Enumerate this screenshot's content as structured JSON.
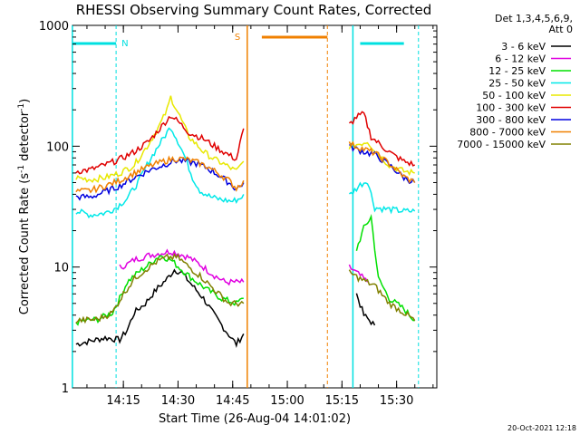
{
  "chart_data": {
    "type": "line",
    "title": "RHESSI Observing Summary Count Rates, Corrected",
    "xlabel": "Start Time (26-Aug-04 14:01:02)",
    "ylabel": "Corrected Count Rate (s-1 detector-1)",
    "ylabel_parts": {
      "main": "Corrected Count Rate (s",
      "sup1": "-1",
      "mid": " detector",
      "sup2": "-1",
      "end": ")"
    },
    "x_axis_start": "14:01:02",
    "xlim": [
      "14:01:02",
      "15:41:02"
    ],
    "ylim": [
      1,
      1000
    ],
    "yscale": "log",
    "grid": false,
    "x_ticks": [
      "14:15",
      "14:30",
      "14:45",
      "15:00",
      "15:15",
      "15:30"
    ],
    "y_ticks": [
      "1",
      "10",
      "100",
      "1000"
    ],
    "legend": {
      "placement": "right",
      "header": [
        "Det 1,3,4,5,6,9,",
        "Att 0"
      ]
    },
    "series": [
      {
        "name": "3 - 6 keV",
        "color": "#000000",
        "points": [
          [
            "14:02",
            2.3
          ],
          [
            "14:10",
            2.6
          ],
          [
            "14:14",
            2.5
          ],
          [
            "14:16",
            3
          ],
          [
            "14:18",
            4.2
          ],
          [
            "14:21",
            5
          ],
          [
            "14:24",
            6.5
          ],
          [
            "14:27",
            8
          ],
          [
            "14:29",
            9.5
          ],
          [
            "14:31",
            9
          ],
          [
            "14:34",
            7
          ],
          [
            "14:37",
            5.5
          ],
          [
            "14:40",
            4
          ],
          [
            "14:43",
            3
          ],
          [
            "14:46",
            2.3
          ],
          [
            "14:48",
            2.8
          ],
          [
            "15:19",
            6
          ],
          [
            "15:21",
            4
          ],
          [
            "15:24",
            3.3
          ]
        ]
      },
      {
        "name": "6 - 12 keV",
        "color": "#e000e0",
        "points": [
          [
            "14:14",
            10
          ],
          [
            "14:16",
            10.5
          ],
          [
            "14:18",
            11.5
          ],
          [
            "14:20",
            12
          ],
          [
            "14:22",
            12.5
          ],
          [
            "14:25",
            13
          ],
          [
            "14:28",
            13.5
          ],
          [
            "14:30",
            13
          ],
          [
            "14:33",
            12
          ],
          [
            "14:36",
            10.5
          ],
          [
            "14:40",
            8.5
          ],
          [
            "14:43",
            7.5
          ],
          [
            "14:48",
            7.5
          ],
          [
            "15:17",
            10
          ],
          [
            "15:20",
            8.5
          ],
          [
            "15:22",
            7.5
          ]
        ]
      },
      {
        "name": "12 - 25 keV",
        "color": "#00e000",
        "points": [
          [
            "14:02",
            3.5
          ],
          [
            "14:08",
            3.7
          ],
          [
            "14:12",
            4.2
          ],
          [
            "14:14",
            5.5
          ],
          [
            "14:16",
            7.5
          ],
          [
            "14:19",
            9
          ],
          [
            "14:22",
            10.5
          ],
          [
            "14:25",
            12.5
          ],
          [
            "14:28",
            11.5
          ],
          [
            "14:31",
            9.5
          ],
          [
            "14:34",
            8
          ],
          [
            "14:38",
            6.5
          ],
          [
            "14:42",
            5.5
          ],
          [
            "14:46",
            5
          ],
          [
            "14:48",
            5.5
          ],
          [
            "15:19",
            14
          ],
          [
            "15:21",
            21
          ],
          [
            "15:23",
            26
          ],
          [
            "15:25",
            8
          ],
          [
            "15:28",
            5.5
          ],
          [
            "15:32",
            4.5
          ],
          [
            "15:35",
            3.6
          ]
        ]
      },
      {
        "name": "25 - 50 keV",
        "color": "#00e8e8",
        "points": [
          [
            "14:02",
            29
          ],
          [
            "14:06",
            27
          ],
          [
            "14:10",
            28
          ],
          [
            "14:13",
            31
          ],
          [
            "14:16",
            37
          ],
          [
            "14:19",
            50
          ],
          [
            "14:22",
            75
          ],
          [
            "14:25",
            105
          ],
          [
            "14:28",
            145
          ],
          [
            "14:30",
            110
          ],
          [
            "14:32",
            80
          ],
          [
            "14:34",
            55
          ],
          [
            "14:36",
            43
          ],
          [
            "14:39",
            38
          ],
          [
            "14:42",
            36
          ],
          [
            "14:45",
            35
          ],
          [
            "14:47",
            37
          ],
          [
            "14:48",
            40
          ],
          [
            "15:17",
            39
          ],
          [
            "15:20",
            48
          ],
          [
            "15:22",
            52
          ],
          [
            "15:24",
            31
          ],
          [
            "15:28",
            30
          ],
          [
            "15:32",
            29
          ],
          [
            "15:35",
            29
          ]
        ]
      },
      {
        "name": "50 - 100 keV",
        "color": "#e8e800",
        "points": [
          [
            "14:02",
            55
          ],
          [
            "14:06",
            53
          ],
          [
            "14:10",
            55
          ],
          [
            "14:14",
            60
          ],
          [
            "14:18",
            70
          ],
          [
            "14:22",
            105
          ],
          [
            "14:25",
            150
          ],
          [
            "14:27",
            200
          ],
          [
            "14:28",
            255
          ],
          [
            "14:30",
            190
          ],
          [
            "14:33",
            120
          ],
          [
            "14:37",
            90
          ],
          [
            "14:40",
            78
          ],
          [
            "14:43",
            70
          ],
          [
            "14:46",
            62
          ],
          [
            "14:48",
            75
          ],
          [
            "15:17",
            100
          ],
          [
            "15:20",
            105
          ],
          [
            "15:22",
            110
          ],
          [
            "15:25",
            85
          ],
          [
            "15:28",
            70
          ],
          [
            "15:32",
            62
          ],
          [
            "15:35",
            60
          ]
        ]
      },
      {
        "name": "100 - 300 keV",
        "color": "#e00000",
        "points": [
          [
            "14:02",
            62
          ],
          [
            "14:06",
            64
          ],
          [
            "14:10",
            70
          ],
          [
            "14:14",
            78
          ],
          [
            "14:18",
            90
          ],
          [
            "14:22",
            110
          ],
          [
            "14:25",
            140
          ],
          [
            "14:28",
            180
          ],
          [
            "14:30",
            160
          ],
          [
            "14:33",
            130
          ],
          [
            "14:37",
            115
          ],
          [
            "14:40",
            100
          ],
          [
            "14:43",
            88
          ],
          [
            "14:46",
            78
          ],
          [
            "14:48",
            140
          ],
          [
            "15:17",
            150
          ],
          [
            "15:19",
            175
          ],
          [
            "15:21",
            185
          ],
          [
            "15:23",
            120
          ],
          [
            "15:26",
            100
          ],
          [
            "15:29",
            85
          ],
          [
            "15:32",
            75
          ],
          [
            "15:35",
            70
          ]
        ]
      },
      {
        "name": "300 - 800 keV",
        "color": "#0000e0",
        "points": [
          [
            "14:02",
            38
          ],
          [
            "14:06",
            38
          ],
          [
            "14:10",
            42
          ],
          [
            "14:14",
            47
          ],
          [
            "14:18",
            55
          ],
          [
            "14:22",
            63
          ],
          [
            "14:26",
            70
          ],
          [
            "14:29",
            76
          ],
          [
            "14:32",
            75
          ],
          [
            "14:35",
            72
          ],
          [
            "14:38",
            66
          ],
          [
            "14:41",
            58
          ],
          [
            "14:44",
            50
          ],
          [
            "14:46",
            44
          ],
          [
            "14:48",
            50
          ],
          [
            "15:17",
            100
          ],
          [
            "15:20",
            92
          ],
          [
            "15:24",
            85
          ],
          [
            "15:28",
            70
          ],
          [
            "15:32",
            55
          ],
          [
            "15:35",
            50
          ]
        ]
      },
      {
        "name": "800 - 7000 keV",
        "color": "#f08000",
        "points": [
          [
            "14:02",
            42
          ],
          [
            "14:06",
            43
          ],
          [
            "14:10",
            47
          ],
          [
            "14:14",
            52
          ],
          [
            "14:18",
            60
          ],
          [
            "14:22",
            68
          ],
          [
            "14:26",
            75
          ],
          [
            "14:29",
            79
          ],
          [
            "14:32",
            78
          ],
          [
            "14:35",
            74
          ],
          [
            "14:38",
            68
          ],
          [
            "14:41",
            60
          ],
          [
            "14:44",
            52
          ],
          [
            "14:46",
            45
          ],
          [
            "14:48",
            52
          ],
          [
            "15:17",
            105
          ],
          [
            "15:20",
            97
          ],
          [
            "15:24",
            88
          ],
          [
            "15:28",
            72
          ],
          [
            "15:32",
            56
          ],
          [
            "15:35",
            50
          ]
        ]
      },
      {
        "name": "7000 - 15000 keV",
        "color": "#808000",
        "points": [
          [
            "14:02",
            3.6
          ],
          [
            "14:08",
            3.7
          ],
          [
            "14:12",
            4.2
          ],
          [
            "14:15",
            6
          ],
          [
            "14:18",
            8
          ],
          [
            "14:21",
            9.5
          ],
          [
            "14:24",
            11
          ],
          [
            "14:27",
            12
          ],
          [
            "14:30",
            12
          ],
          [
            "14:33",
            10
          ],
          [
            "14:36",
            8.5
          ],
          [
            "14:40",
            6.5
          ],
          [
            "14:44",
            5
          ],
          [
            "14:48",
            5
          ],
          [
            "15:17",
            9
          ],
          [
            "15:20",
            8
          ],
          [
            "15:24",
            7
          ],
          [
            "15:28",
            5
          ],
          [
            "15:32",
            4.2
          ],
          [
            "15:35",
            3.6
          ]
        ]
      }
    ],
    "annotations": {
      "night_label": "N",
      "saa_label": "S",
      "footer_date": "20-Oct-2021 12:18",
      "night_bars": [
        [
          "14:01",
          "14:13"
        ],
        [
          "15:20",
          "15:32"
        ]
      ],
      "night_start_line": "14:13",
      "night_end_line": "15:20",
      "saa_bar": [
        "14:53",
        "15:11"
      ],
      "saa_start_line": "14:49",
      "saa_end_line": "15:11",
      "day_start_lines": [
        "14:01",
        "15:18"
      ],
      "day_end_line": "15:36"
    }
  }
}
